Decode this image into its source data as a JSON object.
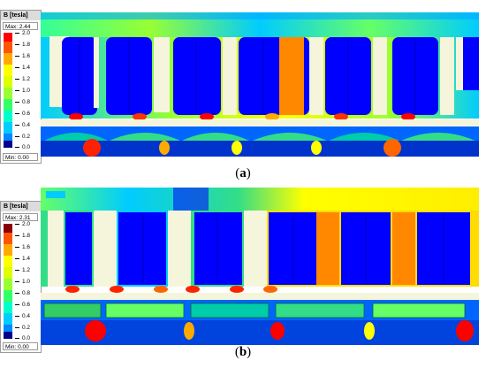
{
  "colors": {
    "scale": [
      "#00008b",
      "#0000ff",
      "#0088ff",
      "#00ccff",
      "#00ffcc",
      "#33ff66",
      "#99ff33",
      "#ddff00",
      "#ffff00",
      "#ffaa00",
      "#ff5500",
      "#ff0000",
      "#8b0000"
    ],
    "background_field": "#0033cc",
    "slot": "#f5f5dc"
  },
  "panel_a": {
    "legend": {
      "title": "B [tesla]",
      "max": "Max: 2.44",
      "min": "Min: 0.00",
      "ticks": [
        "2.0",
        "1.8",
        "1.6",
        "1.4",
        "1.2",
        "1.0",
        "0.8",
        "0.6",
        "0.4",
        "0.2",
        "0.0"
      ]
    },
    "caption_open": "(",
    "caption_letter": "a",
    "caption_close": ")"
  },
  "panel_b": {
    "legend": {
      "title": "B [tesla]",
      "max": "Max: 2.31",
      "min": "Min: 0.00",
      "ticks": [
        "2.0",
        "1.8",
        "1.6",
        "1.4",
        "1.2",
        "1.0",
        "0.8",
        "0.6",
        "0.4",
        "0.2",
        "0.0"
      ]
    },
    "caption_open": "(",
    "caption_letter": "b",
    "caption_close": ")"
  }
}
